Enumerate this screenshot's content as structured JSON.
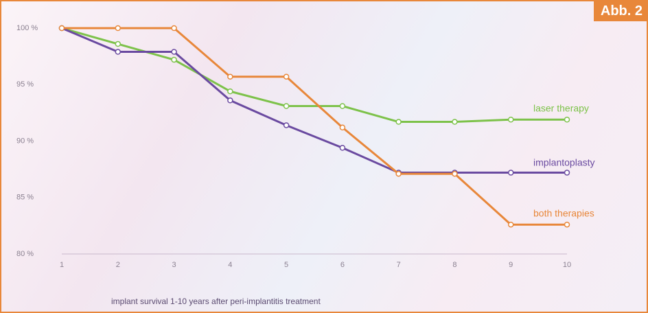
{
  "chart_data": {
    "type": "line",
    "badge": "Abb. 2",
    "x_label": "implant survival 1-10 years after peri-implantitis treatment",
    "x": [
      1,
      2,
      3,
      4,
      5,
      6,
      7,
      8,
      9,
      10
    ],
    "xlim": [
      1,
      10
    ],
    "xticks": [
      1,
      2,
      3,
      4,
      5,
      6,
      7,
      8,
      9,
      10
    ],
    "ylim": [
      80,
      100
    ],
    "yticks": [
      {
        "value": 80,
        "label": "80 %"
      },
      {
        "value": 85,
        "label": "85 %"
      },
      {
        "value": 90,
        "label": "90 %"
      },
      {
        "value": 95,
        "label": "95 %"
      },
      {
        "value": 100,
        "label": "100 %"
      }
    ],
    "series": [
      {
        "name": "laser therapy",
        "color": "#7dc24a",
        "values": [
          100,
          98.6,
          97.2,
          94.4,
          93.1,
          93.1,
          91.7,
          91.7,
          91.9,
          91.9
        ]
      },
      {
        "name": "implantoplasty",
        "color": "#6a4aa0",
        "values": [
          100,
          97.9,
          97.9,
          93.6,
          91.4,
          89.4,
          87.2,
          87.2,
          87.2,
          87.2
        ]
      },
      {
        "name": "both therapies",
        "color": "#e8873a",
        "values": [
          100,
          100,
          100,
          95.7,
          95.7,
          91.2,
          87.1,
          87.1,
          82.6,
          82.6
        ]
      }
    ]
  }
}
